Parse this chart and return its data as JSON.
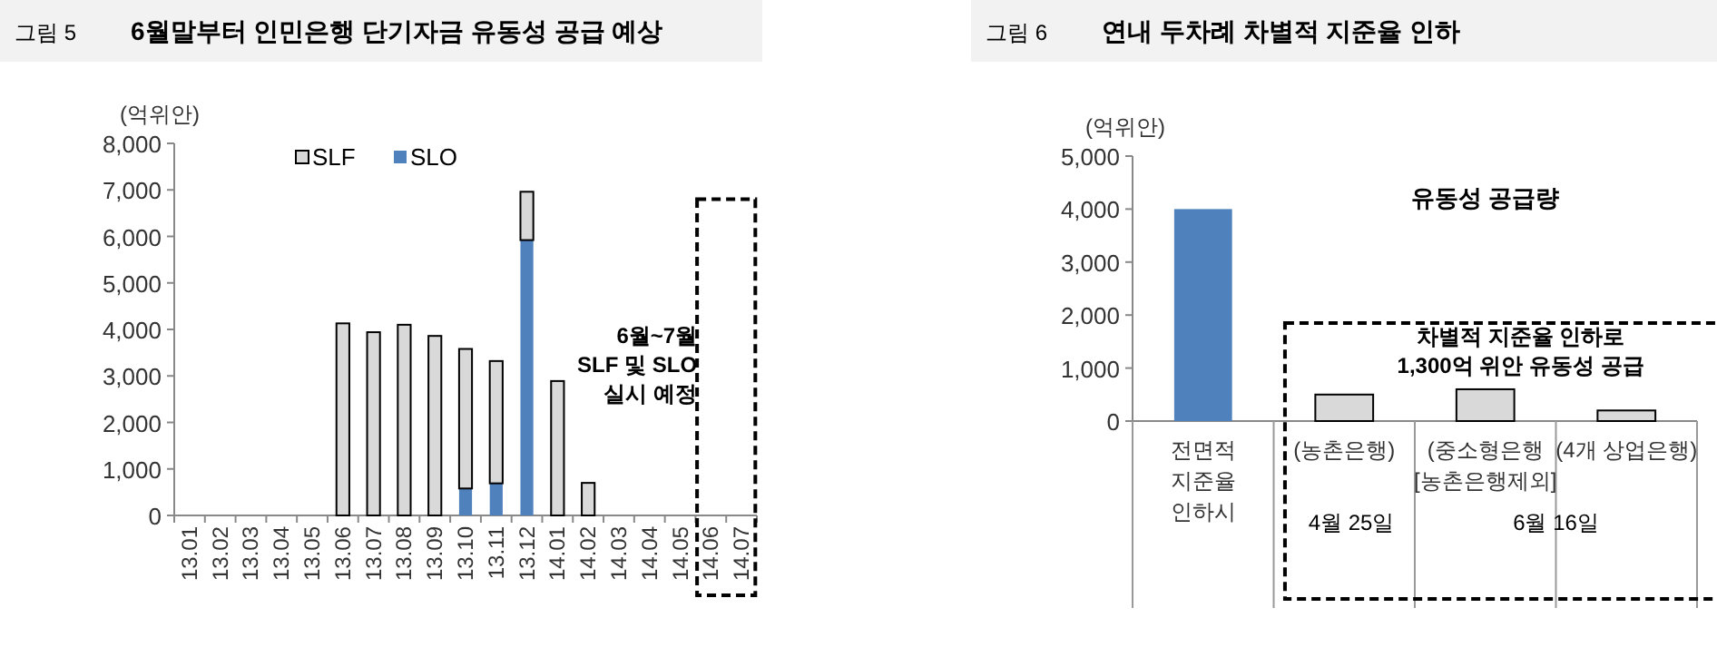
{
  "chart_data": [
    {
      "type": "bar",
      "stacked": true,
      "subtitle": "그림 5",
      "title": "6월말부터 인민은행 단기자금 유동성 공급 예상",
      "ylabel": "(억위안)",
      "categories": [
        "13.01",
        "13.02",
        "13.03",
        "13.04",
        "13.05",
        "13.06",
        "13.07",
        "13.08",
        "13.09",
        "13.10",
        "13.11",
        "13.12",
        "14.01",
        "14.02",
        "14.03",
        "14.04",
        "14.05",
        "14.06",
        "14.07"
      ],
      "series": [
        {
          "name": "SLO",
          "color": "#4f81bd",
          "values": [
            0,
            0,
            0,
            0,
            0,
            0,
            0,
            0,
            0,
            580,
            690,
            5920,
            0,
            0,
            0,
            0,
            0,
            0,
            0
          ]
        },
        {
          "name": "SLF",
          "color": "#d9d9d9",
          "values": [
            0,
            0,
            0,
            0,
            0,
            4130,
            3940,
            4100,
            3860,
            3000,
            2630,
            1040,
            2890,
            700,
            0,
            0,
            0,
            0,
            0
          ]
        }
      ],
      "ylim": [
        0,
        8000
      ],
      "yticks": [
        0,
        {
          "value": 1000,
          "label": "1,000"
        },
        {
          "value": 2000,
          "label": "2,000"
        },
        {
          "value": 3000,
          "label": "3,000"
        },
        {
          "value": 4000,
          "label": "4,000"
        },
        {
          "value": 5000,
          "label": "5,000"
        },
        {
          "value": 6000,
          "label": "6,000"
        },
        {
          "value": 7000,
          "label": "7,000"
        },
        {
          "value": 8000,
          "label": "8,000"
        }
      ],
      "legend": "top",
      "annotations": [
        "6월~7월\nSLF 및 SLO\n실시 예정"
      ]
    },
    {
      "type": "bar",
      "subtitle": "그림 6",
      "title": "연내 두차례 차별적 지준율 인하",
      "ylabel": "(억위안)",
      "categories": [
        "전면적\n지준율\n인하시",
        "(농촌은행)",
        "(중소형은행\n[농촌은행제외]",
        "(4개 상업은행)"
      ],
      "values": [
        4000,
        500,
        600,
        200
      ],
      "colors": [
        "#4f81bd",
        "#d9d9d9",
        "#d9d9d9",
        "#d9d9d9"
      ],
      "ylim": [
        0,
        5000
      ],
      "yticks": [
        0,
        {
          "value": 1000,
          "label": "1,000"
        },
        {
          "value": 2000,
          "label": "2,000"
        },
        {
          "value": 3000,
          "label": "3,000"
        },
        {
          "value": 4000,
          "label": "4,000"
        },
        {
          "value": 5000,
          "label": "5,000"
        }
      ],
      "annotations": [
        "유동성 공급량",
        "차별적 지준율 인하로\n1,300억 위안 유동성 공급",
        "4월 25일",
        "6월 16일"
      ]
    }
  ]
}
